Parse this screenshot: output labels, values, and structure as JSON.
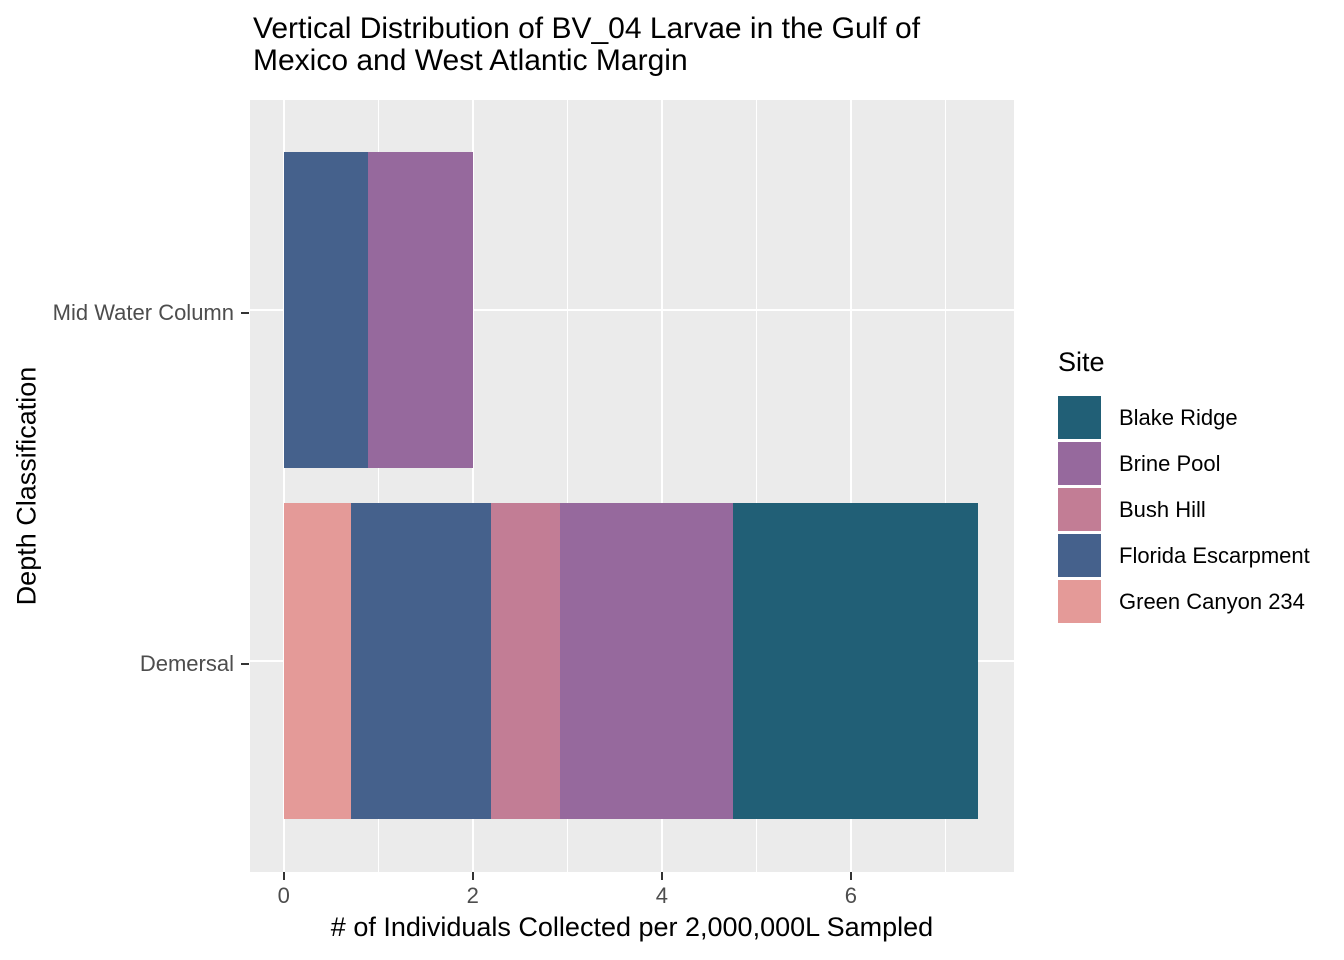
{
  "chart_data": {
    "type": "bar",
    "orientation": "horizontal",
    "stacked": true,
    "title": "Vertical Distribution of BV_04 Larvae in the Gulf of\nMexico and West Atlantic Margin",
    "xlabel": "# of Individuals Collected per 2,000,000L Sampled",
    "ylabel": "Depth Classification",
    "legend_title": "Site",
    "legend_position": "right",
    "panel_bg": "#EBEBEB",
    "grid_color": "#FFFFFF",
    "tick_label_color": "#4D4D4D",
    "xlim": [
      0,
      7.75
    ],
    "x_ticks": [
      0,
      2,
      4,
      6
    ],
    "x_minor_ticks": [
      1,
      3,
      5,
      7
    ],
    "categories": [
      "Mid Water Column",
      "Demersal"
    ],
    "series": [
      {
        "name": "Blake Ridge",
        "color": "#215F76",
        "values": [
          0,
          2.6
        ]
      },
      {
        "name": "Brine Pool",
        "color": "#96699D",
        "values": [
          1.11,
          1.83
        ]
      },
      {
        "name": "Bush Hill",
        "color": "#C27D95",
        "values": [
          0,
          0.73
        ]
      },
      {
        "name": "Florida Escarpment",
        "color": "#45618C",
        "values": [
          0.89,
          1.48
        ]
      },
      {
        "name": "Green Canyon 234",
        "color": "#E49A98",
        "values": [
          0,
          0.71
        ]
      }
    ],
    "stack_order_left_to_right": [
      "Green Canyon 234",
      "Florida Escarpment",
      "Bush Hill",
      "Brine Pool",
      "Blake Ridge"
    ],
    "category_totals": [
      2.0,
      7.35
    ]
  }
}
